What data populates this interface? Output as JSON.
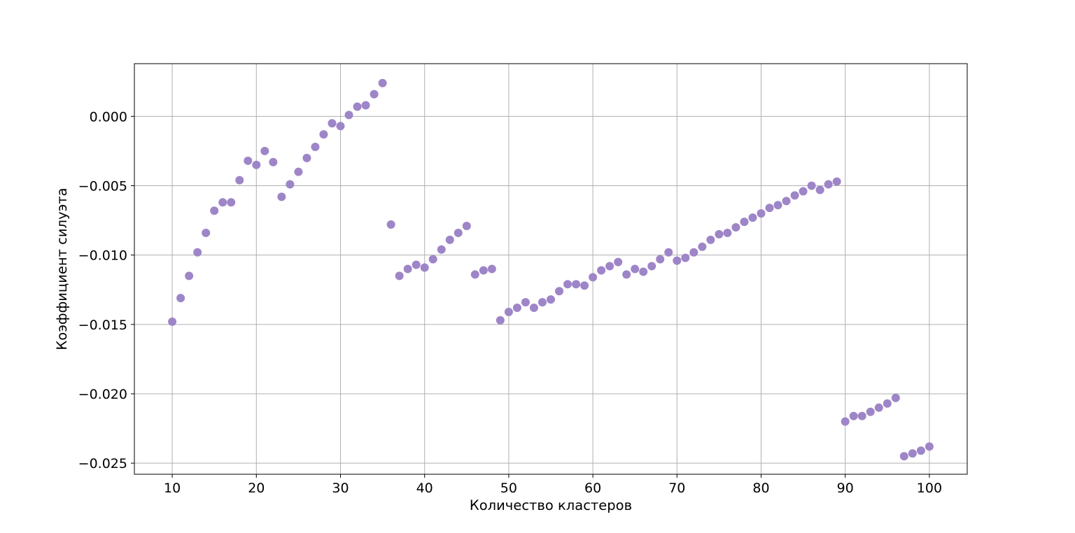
{
  "chart_data": {
    "type": "scatter",
    "title": "",
    "xlabel": "Количество кластеров",
    "ylabel": "Коэффициент силуэта",
    "xlim": [
      5.5,
      104.5
    ],
    "ylim": [
      -0.0258,
      0.0038
    ],
    "grid": true,
    "marker_color": "#9e85c8",
    "x_ticks": [
      10,
      20,
      30,
      40,
      50,
      60,
      70,
      80,
      90,
      100
    ],
    "x_tick_labels": [
      "10",
      "20",
      "30",
      "40",
      "50",
      "60",
      "70",
      "80",
      "90",
      "100"
    ],
    "y_ticks": [
      0.0,
      -0.005,
      -0.01,
      -0.015,
      -0.02,
      -0.025
    ],
    "y_tick_labels": [
      "0.000",
      "−0.005",
      "−0.010",
      "−0.015",
      "−0.020",
      "−0.025"
    ],
    "x": [
      10,
      11,
      12,
      13,
      14,
      15,
      16,
      17,
      18,
      19,
      20,
      21,
      22,
      23,
      24,
      25,
      26,
      27,
      28,
      29,
      30,
      31,
      32,
      33,
      34,
      35,
      36,
      37,
      38,
      39,
      40,
      41,
      42,
      43,
      44,
      45,
      46,
      47,
      48,
      49,
      50,
      51,
      52,
      53,
      54,
      55,
      56,
      57,
      58,
      59,
      60,
      61,
      62,
      63,
      64,
      65,
      66,
      67,
      68,
      69,
      70,
      71,
      72,
      73,
      74,
      75,
      76,
      77,
      78,
      79,
      80,
      81,
      82,
      83,
      84,
      85,
      86,
      87,
      88,
      89,
      90,
      91,
      92,
      93,
      94,
      95,
      96,
      97,
      98,
      99,
      100
    ],
    "y": [
      -0.0148,
      -0.0131,
      -0.0115,
      -0.0098,
      -0.0084,
      -0.0068,
      -0.0062,
      -0.0062,
      -0.0046,
      -0.0032,
      -0.0035,
      -0.0025,
      -0.0033,
      -0.0058,
      -0.0049,
      -0.004,
      -0.003,
      -0.0022,
      -0.0013,
      -0.0005,
      -0.0007,
      0.0001,
      0.0007,
      0.0008,
      0.0016,
      0.0024,
      -0.0078,
      -0.0115,
      -0.011,
      -0.0107,
      -0.0109,
      -0.0103,
      -0.0096,
      -0.0089,
      -0.0084,
      -0.0079,
      -0.0114,
      -0.0111,
      -0.011,
      -0.0147,
      -0.0141,
      -0.0138,
      -0.0134,
      -0.0138,
      -0.0134,
      -0.0132,
      -0.0126,
      -0.0121,
      -0.0121,
      -0.0122,
      -0.0116,
      -0.0111,
      -0.0108,
      -0.0105,
      -0.0114,
      -0.011,
      -0.0112,
      -0.0108,
      -0.0103,
      -0.0098,
      -0.0104,
      -0.0102,
      -0.0098,
      -0.0094,
      -0.0089,
      -0.0085,
      -0.0084,
      -0.008,
      -0.0076,
      -0.0073,
      -0.007,
      -0.0066,
      -0.0064,
      -0.0061,
      -0.0057,
      -0.0054,
      -0.005,
      -0.0053,
      -0.0049,
      -0.0047,
      -0.022,
      -0.0216,
      -0.0216,
      -0.0213,
      -0.021,
      -0.0207,
      -0.0203,
      -0.0245,
      -0.0243,
      -0.0241,
      -0.0238
    ]
  }
}
